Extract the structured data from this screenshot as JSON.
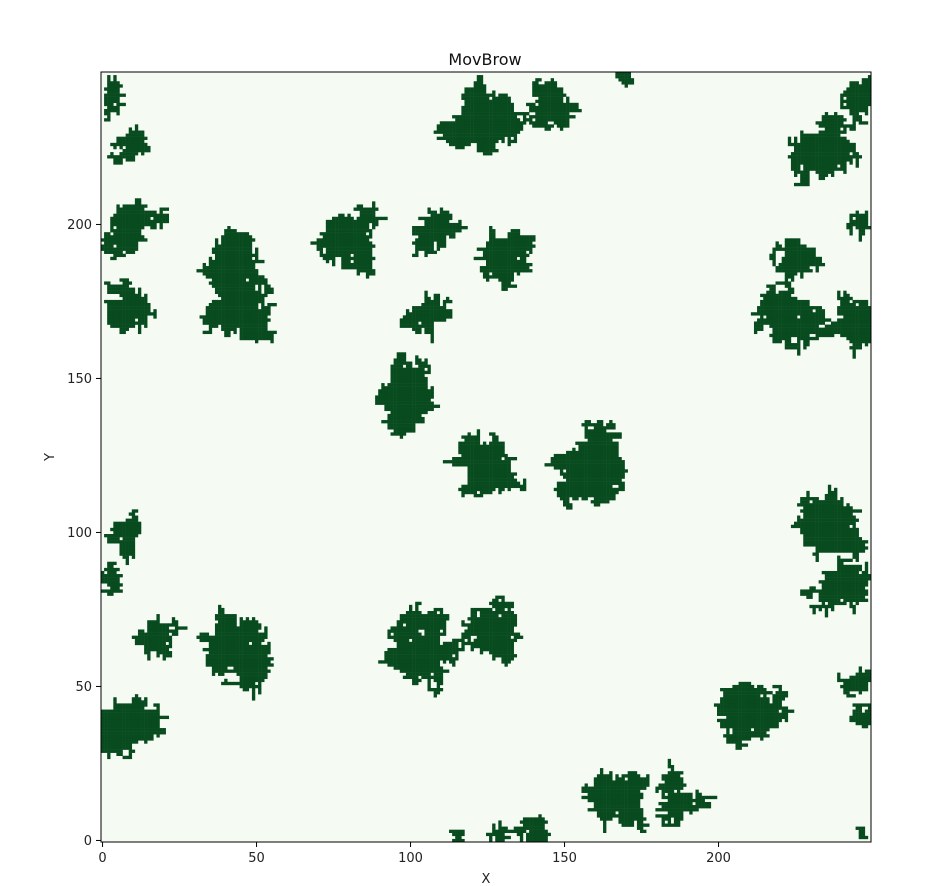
{
  "chart_data": {
    "type": "heatmap",
    "title": "MovBrow",
    "xlabel": "X",
    "ylabel": "Y",
    "xlim": [
      0,
      250
    ],
    "ylim": [
      0,
      250
    ],
    "xticks": [
      0,
      50,
      100,
      150,
      200
    ],
    "yticks": [
      0,
      50,
      100,
      150,
      200
    ],
    "grid": false,
    "colors": {
      "background": "#f5fbf2",
      "occupied": "#084b1f"
    },
    "clusters": [
      {
        "cx": 3,
        "cy": 238,
        "n": 60,
        "seed": 11
      },
      {
        "cx": 10,
        "cy": 226,
        "n": 90,
        "seed": 12
      },
      {
        "cx": 8,
        "cy": 200,
        "n": 220,
        "seed": 13
      },
      {
        "cx": 8,
        "cy": 172,
        "n": 180,
        "seed": 14
      },
      {
        "cx": 42,
        "cy": 184,
        "n": 380,
        "seed": 15
      },
      {
        "cx": 42,
        "cy": 170,
        "n": 200,
        "seed": 16
      },
      {
        "cx": 80,
        "cy": 195,
        "n": 300,
        "seed": 17
      },
      {
        "cx": 107,
        "cy": 197,
        "n": 150,
        "seed": 18
      },
      {
        "cx": 130,
        "cy": 190,
        "n": 230,
        "seed": 19
      },
      {
        "cx": 105,
        "cy": 170,
        "n": 130,
        "seed": 20
      },
      {
        "cx": 125,
        "cy": 232,
        "n": 400,
        "seed": 21
      },
      {
        "cx": 145,
        "cy": 238,
        "n": 180,
        "seed": 22
      },
      {
        "cx": 168,
        "cy": 248,
        "n": 20,
        "seed": 23
      },
      {
        "cx": 237,
        "cy": 225,
        "n": 320,
        "seed": 24
      },
      {
        "cx": 245,
        "cy": 240,
        "n": 100,
        "seed": 25
      },
      {
        "cx": 225,
        "cy": 190,
        "n": 140,
        "seed": 26
      },
      {
        "cx": 220,
        "cy": 170,
        "n": 320,
        "seed": 27
      },
      {
        "cx": 246,
        "cy": 200,
        "n": 40,
        "seed": 28
      },
      {
        "cx": 245,
        "cy": 170,
        "n": 170,
        "seed": 29
      },
      {
        "cx": 97,
        "cy": 145,
        "n": 330,
        "seed": 30
      },
      {
        "cx": 125,
        "cy": 122,
        "n": 300,
        "seed": 31
      },
      {
        "cx": 160,
        "cy": 118,
        "n": 450,
        "seed": 32
      },
      {
        "cx": 8,
        "cy": 102,
        "n": 100,
        "seed": 33
      },
      {
        "cx": 4,
        "cy": 84,
        "n": 50,
        "seed": 34
      },
      {
        "cx": 237,
        "cy": 100,
        "n": 340,
        "seed": 35
      },
      {
        "cx": 240,
        "cy": 82,
        "n": 220,
        "seed": 36
      },
      {
        "cx": 17,
        "cy": 67,
        "n": 120,
        "seed": 37
      },
      {
        "cx": 45,
        "cy": 62,
        "n": 400,
        "seed": 38
      },
      {
        "cx": 102,
        "cy": 60,
        "n": 420,
        "seed": 39
      },
      {
        "cx": 128,
        "cy": 70,
        "n": 260,
        "seed": 40
      },
      {
        "cx": 8,
        "cy": 38,
        "n": 280,
        "seed": 41
      },
      {
        "cx": 210,
        "cy": 40,
        "n": 340,
        "seed": 42
      },
      {
        "cx": 246,
        "cy": 50,
        "n": 60,
        "seed": 43
      },
      {
        "cx": 246,
        "cy": 38,
        "n": 40,
        "seed": 44
      },
      {
        "cx": 168,
        "cy": 15,
        "n": 280,
        "seed": 45
      },
      {
        "cx": 185,
        "cy": 12,
        "n": 170,
        "seed": 46
      },
      {
        "cx": 142,
        "cy": 3,
        "n": 70,
        "seed": 47
      },
      {
        "cx": 128,
        "cy": 1,
        "n": 30,
        "seed": 48
      },
      {
        "cx": 116,
        "cy": 2,
        "n": 15,
        "seed": 49
      },
      {
        "cx": 246,
        "cy": 2,
        "n": 10,
        "seed": 50
      }
    ]
  }
}
